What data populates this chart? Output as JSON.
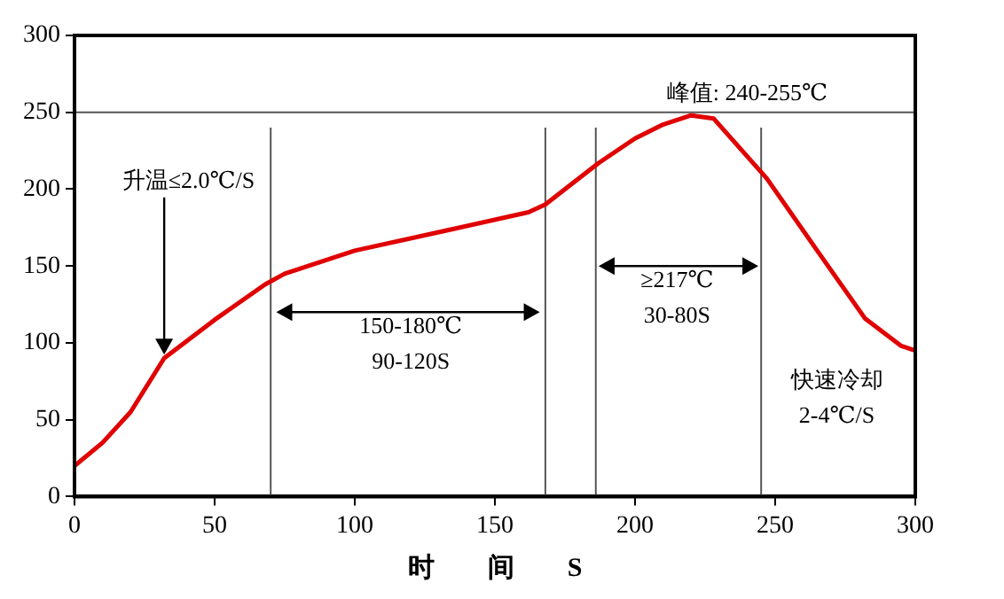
{
  "chart_data": {
    "type": "line",
    "xlabel": "时　　间　　S",
    "x": [
      0,
      10,
      20,
      32,
      50,
      68,
      75,
      100,
      130,
      162,
      168,
      175,
      187,
      200,
      210,
      220,
      228,
      247,
      265,
      282,
      295,
      300
    ],
    "series": [
      {
        "color": "#e00000",
        "values": [
          20,
          35,
          55,
          90,
          115,
          138,
          145,
          160,
          172,
          185,
          190,
          200,
          217,
          233,
          242,
          248,
          246,
          207,
          160,
          116,
          98,
          95
        ]
      }
    ],
    "xlim": [
      0,
      300
    ],
    "xticks": [
      0,
      50,
      100,
      150,
      200,
      250,
      300
    ],
    "ylim": [
      0,
      300
    ],
    "yticks": [
      0,
      50,
      100,
      150,
      200,
      250,
      300
    ],
    "grid": false,
    "legend": false,
    "marker": "none",
    "line_style": "solid",
    "ref_lines": [
      {
        "axis": "y",
        "value": 250
      },
      {
        "axis": "x",
        "value": 70
      },
      {
        "axis": "x",
        "value": 168
      },
      {
        "axis": "x",
        "value": 186
      },
      {
        "axis": "x",
        "value": 245
      }
    ],
    "annotations": [
      {
        "text": "升温≤2.0℃/S",
        "x": 32,
        "y": 90
      },
      "150-180℃",
      "90-120S",
      "峰值: 240-255℃",
      "≥217℃",
      "30-80S",
      "快速冷却",
      "2-4℃/S"
    ]
  }
}
